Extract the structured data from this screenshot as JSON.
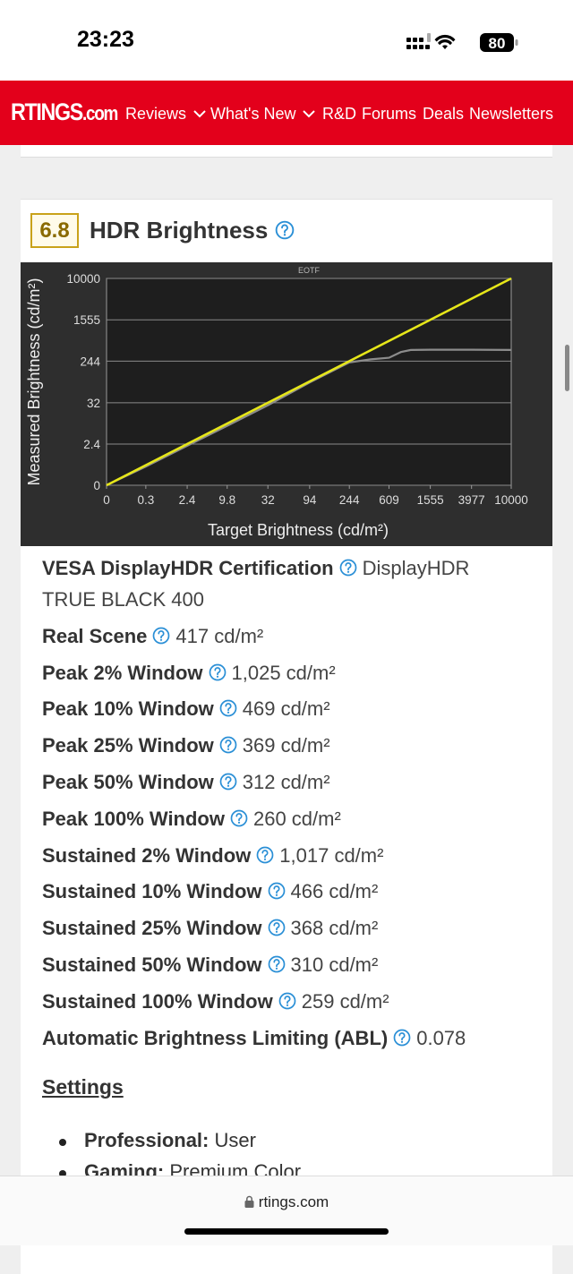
{
  "status_bar": {
    "time": "23:23",
    "battery": "80"
  },
  "nav": {
    "logo": "RTINGS",
    "logo_suffix": ".com",
    "items": [
      "Reviews",
      "What's New",
      "R&D",
      "Forums",
      "Deals",
      "Newsletters"
    ]
  },
  "section": {
    "score": "6.8",
    "title": "HDR Brightness"
  },
  "chart_data": {
    "type": "line",
    "title": "EOTF",
    "x_label": "Target Brightness (cd/m²)",
    "y_label": "Measured Brightness (cd/m²)",
    "scale": "pq",
    "xlim": [
      0,
      10000
    ],
    "ylim": [
      0,
      10000
    ],
    "xticks": [
      0,
      0.3,
      2.4,
      9.8,
      32,
      94,
      244,
      609,
      1555,
      3977,
      10000
    ],
    "yticks": [
      0,
      2.4,
      32,
      244,
      1555,
      10000
    ],
    "grid": "y",
    "series": [
      {
        "color": "#8c8c8c",
        "x": [
          0,
          0.3,
          2.4,
          9.8,
          32,
          94,
          244,
          400,
          609,
          800,
          1000,
          1555,
          3977,
          10000
        ],
        "values": [
          0,
          0.25,
          2.1,
          8.5,
          28,
          90,
          230,
          265,
          285,
          370,
          405,
          410,
          410,
          405
        ]
      },
      {
        "color": "#e6e619",
        "x": [
          0,
          10000
        ],
        "values": [
          0,
          10000
        ]
      }
    ]
  },
  "specs": [
    {
      "label": "VESA DisplayHDR Certification",
      "value": "DisplayHDR TRUE BLACK 400"
    },
    {
      "label": "Real Scene",
      "value": "417 cd/m²"
    },
    {
      "label": "Peak 2% Window",
      "value": "1,025 cd/m²"
    },
    {
      "label": "Peak 10% Window",
      "value": "469 cd/m²"
    },
    {
      "label": "Peak 25% Window",
      "value": "369 cd/m²"
    },
    {
      "label": "Peak 50% Window",
      "value": "312 cd/m²"
    },
    {
      "label": "Peak 100% Window",
      "value": "260 cd/m²"
    },
    {
      "label": "Sustained 2% Window",
      "value": "1,017 cd/m²"
    },
    {
      "label": "Sustained 10% Window",
      "value": "466 cd/m²"
    },
    {
      "label": "Sustained 25% Window",
      "value": "368 cd/m²"
    },
    {
      "label": "Sustained 50% Window",
      "value": "310 cd/m²"
    },
    {
      "label": "Sustained 100% Window",
      "value": "259 cd/m²"
    },
    {
      "label": "Automatic Brightness Limiting (ABL)",
      "value": "0.078"
    }
  ],
  "settings": {
    "title": "Settings",
    "items": [
      {
        "label": "Professional:",
        "value": "User"
      },
      {
        "label": "Gaming:",
        "value": "Premium Color"
      }
    ]
  },
  "browser": {
    "url": "rtings.com"
  }
}
